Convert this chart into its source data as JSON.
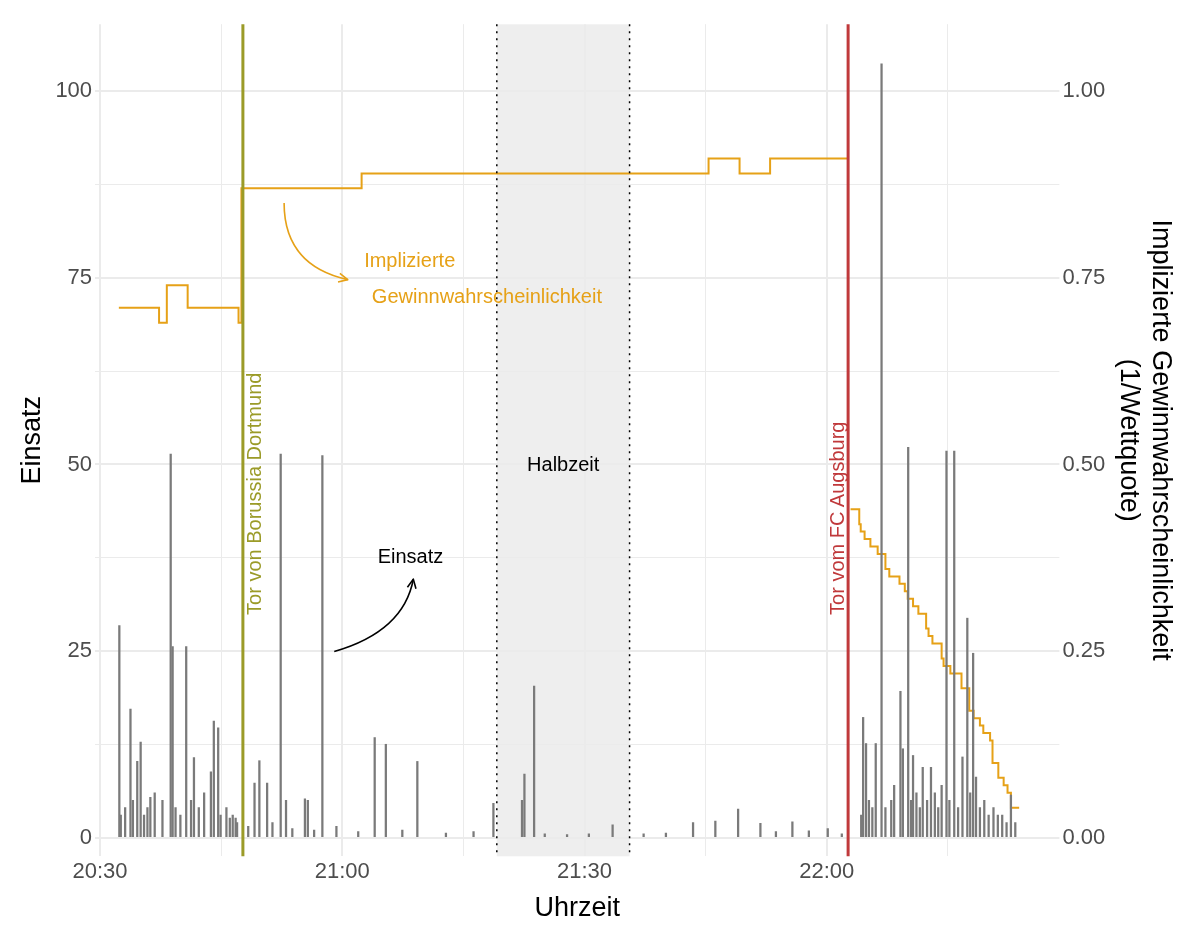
{
  "chart_data": {
    "type": "bar",
    "xlabel": "Uhrzeit",
    "ylabel": "Einsatz",
    "y2label": "Implizierte Gewinnwahrscheinlichkeit (1/Wettquote)",
    "xlim": [
      20.49,
      22.48
    ],
    "xticks": [
      {
        "value": 20.5,
        "label": "20:30"
      },
      {
        "value": 20.75,
        "label": null
      },
      {
        "value": 21,
        "label": "21:00"
      },
      {
        "value": 21.25,
        "label": null
      },
      {
        "value": 21.5,
        "label": "21:30"
      },
      {
        "value": 21.75,
        "label": null
      },
      {
        "value": 22,
        "label": "22:00"
      },
      {
        "value": 22.25,
        "label": null
      }
    ],
    "ylim": [
      -2.5,
      109
    ],
    "yticks": [
      0,
      {
        "value": 12.5,
        "label": null
      },
      25,
      {
        "value": 37.5,
        "label": null
      },
      50,
      {
        "value": 62.5,
        "label": null
      },
      75,
      {
        "value": 87.5,
        "label": null
      },
      100
    ],
    "y2lim": [
      -0.025,
      1.09
    ],
    "y2ticks": [
      {
        "value": 0,
        "label": "0.00"
      },
      {
        "value": 0.25,
        "label": "0.25"
      },
      {
        "value": 0.5,
        "label": "0.50"
      },
      {
        "value": 0.75,
        "label": "0.75"
      },
      {
        "value": 1,
        "label": "1.00"
      }
    ],
    "grid": true,
    "legend": false,
    "annotations": [
      "Einsatz",
      "Implizierte Gewinnwahrscheinlichkeit"
    ],
    "ref_lines": [
      {
        "axis": "x",
        "value": 20.795,
        "label": "Tor von Borussia Dortmund",
        "color": "#9b9b28"
      },
      {
        "axis": "x",
        "value": 22.044,
        "label": "Tor vom FC Augsburg",
        "color": "#c0393b"
      },
      {
        "axis": "x",
        "value": 21.319,
        "color": "#000000",
        "line_style": "dotted"
      },
      {
        "axis": "x",
        "value": 21.593,
        "color": "#000000",
        "line_style": "dotted"
      }
    ],
    "bands": [
      {
        "axis": "x",
        "from": 21.319,
        "to": 21.593,
        "label": "Halbzeit",
        "color": "#ebebeb"
      }
    ],
    "series": [
      {
        "color": "#7a7a7a",
        "x": [
          20.54,
          20.543,
          20.552,
          20.563,
          20.568,
          20.577,
          20.584,
          20.591,
          20.598,
          20.604,
          20.613,
          20.629,
          20.646,
          20.65,
          20.656,
          20.666,
          20.678,
          20.688,
          20.694,
          20.704,
          20.715,
          20.729,
          20.735,
          20.744,
          20.749,
          20.761,
          20.768,
          20.774,
          20.78,
          20.783,
          20.806,
          20.819,
          20.829,
          20.845,
          20.856,
          20.873,
          20.884,
          20.897,
          20.923,
          20.929,
          20.942,
          20.959,
          20.988,
          21.033,
          21.067,
          21.09,
          21.124,
          21.155,
          21.214,
          21.271,
          21.312,
          21.371,
          21.376,
          21.396,
          21.418,
          21.464,
          21.509,
          21.558,
          21.622,
          21.668,
          21.724,
          21.77,
          21.817,
          21.863,
          21.895,
          21.929,
          21.963,
          22.002,
          22.031,
          22.071,
          22.075,
          22.081,
          22.087,
          22.094,
          22.101,
          22.11,
          22.113,
          22.121,
          22.133,
          22.139,
          22.149,
          22.152,
          22.157,
          22.166,
          22.168,
          22.174,
          22.178,
          22.185,
          22.192,
          22.198,
          22.207,
          22.215,
          22.223,
          22.23,
          22.237,
          22.247,
          22.253,
          22.263,
          22.271,
          22.28,
          22.29,
          22.296,
          22.302,
          22.308,
          22.316,
          22.325,
          22.334,
          22.344,
          22.353,
          22.362,
          22.371,
          22.38,
          22.389
        ],
        "values": [
          28.4,
          3,
          4,
          17.2,
          5,
          10.2,
          12.8,
          3,
          4,
          5.4,
          6,
          5,
          51.4,
          25.6,
          4,
          3,
          25.6,
          5,
          10.7,
          4,
          6,
          8.8,
          15.6,
          14.7,
          3,
          4,
          2.6,
          3,
          2.6,
          2,
          1.5,
          7.3,
          10.3,
          7.3,
          2,
          51.4,
          5,
          1.2,
          5.2,
          5,
          1,
          51.2,
          1.5,
          0.8,
          13.4,
          12.5,
          1,
          10.2,
          0.6,
          0.8,
          4.6,
          5,
          8.5,
          20.3,
          0.5,
          0.4,
          0.5,
          1.7,
          0.5,
          0.6,
          2,
          2.2,
          3.8,
          1.9,
          0.8,
          2.1,
          0.9,
          1.2,
          0.5,
          3,
          16.1,
          12.6,
          5,
          4,
          12.6,
          null,
          103.7,
          4,
          5,
          7,
          null,
          19.6,
          11.9,
          null,
          52.3,
          5,
          11,
          6,
          4,
          9.4,
          5,
          9.4,
          6,
          4,
          7,
          51.8,
          5,
          51.8,
          4,
          10.8,
          29.4,
          6,
          24.7,
          8.1,
          4,
          5,
          3,
          4,
          3,
          3,
          2,
          5.7,
          2
        ]
      },
      {
        "type": "step",
        "color": "#e6a117",
        "axis": "y2",
        "x": [
          20.539,
          20.622,
          20.638,
          20.681,
          20.786,
          20.792,
          21.04,
          21.756,
          21.82,
          21.883,
          22.044,
          22.046,
          22.049,
          22.067,
          22.07,
          22.078,
          22.09,
          22.105,
          22.121,
          22.129,
          22.15,
          22.161,
          22.167,
          22.178,
          22.189,
          22.205,
          22.21,
          22.218,
          22.237,
          22.241,
          22.255,
          22.278,
          22.294,
          22.303,
          22.316,
          22.323,
          22.337,
          22.342,
          22.354,
          22.365,
          22.373,
          22.38,
          22.397
        ],
        "values": [
          0.71,
          0.69,
          0.74,
          0.71,
          0.69,
          0.87,
          0.89,
          0.91,
          0.89,
          0.91,
          0.91,
          null,
          0.44,
          0.42,
          0.41,
          0.4,
          0.39,
          0.38,
          0.36,
          0.35,
          0.34,
          0.33,
          0.32,
          0.31,
          0.3,
          0.28,
          0.27,
          0.26,
          0.24,
          0.23,
          0.22,
          0.2,
          0.17,
          0.16,
          0.15,
          0.14,
          0.13,
          0.1,
          0.08,
          0.07,
          0.06,
          0.04,
          0.04
        ]
      }
    ]
  }
}
